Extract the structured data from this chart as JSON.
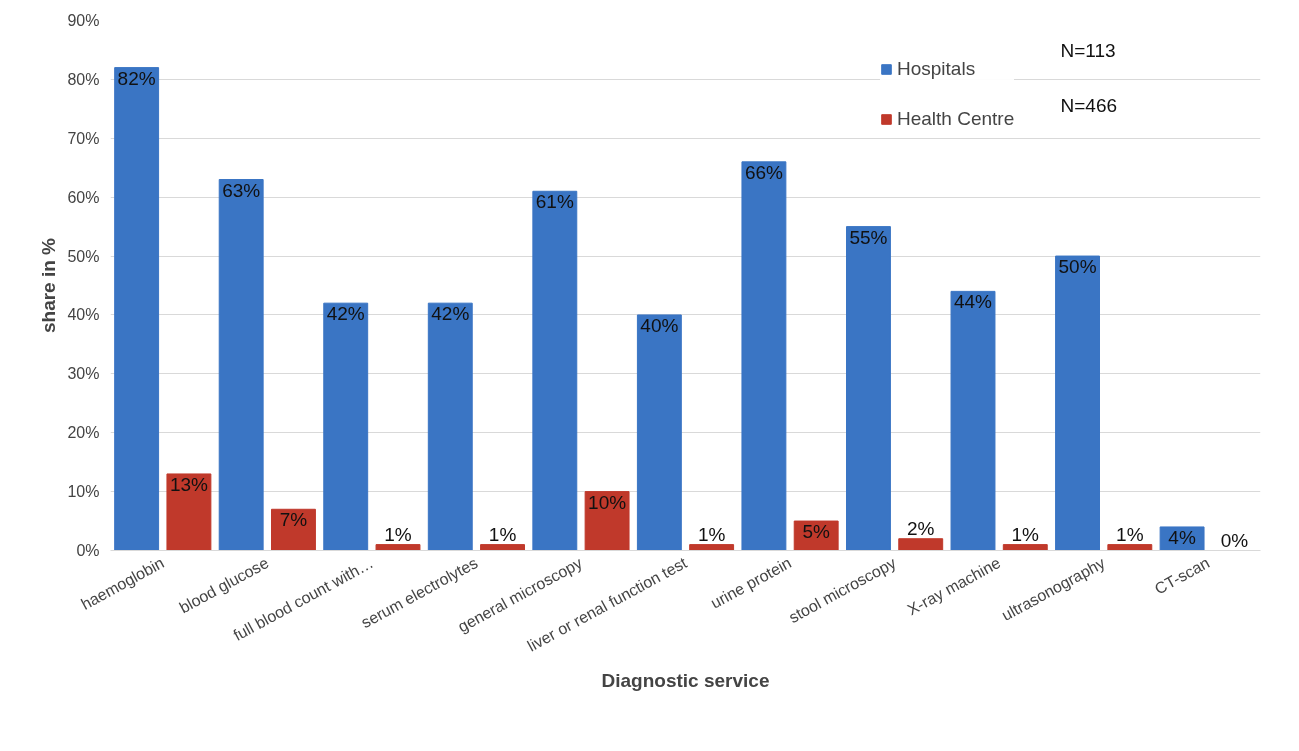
{
  "chart_data": {
    "type": "bar",
    "xlabel": "Diagnostic service",
    "ylabel": "share in %",
    "categories": [
      "haemoglobin",
      "blood glucose",
      "full blood count with…",
      "serum electrolytes",
      "general microscopy",
      "liver or renal function test",
      "urine protein",
      "stool microscopy",
      "X-ray machine",
      "ultrasonography",
      "CT-scan"
    ],
    "series": [
      {
        "name": "Hospitals",
        "color": "#3a75c4",
        "values": [
          82,
          63,
          42,
          42,
          61,
          40,
          66,
          55,
          44,
          50,
          4
        ],
        "value_labels": [
          "82%",
          "63%",
          "42%",
          "42%",
          "61%",
          "40%",
          "66%",
          "55%",
          "44%",
          "50%",
          "4%"
        ]
      },
      {
        "name": "Health Centre",
        "color": "#c0392b",
        "values": [
          13,
          7,
          1,
          1,
          10,
          1,
          5,
          2,
          1,
          1,
          0
        ],
        "value_labels": [
          "13%",
          "7%",
          "1%",
          "1%",
          "10%",
          "1%",
          "5%",
          "2%",
          "1%",
          "1%",
          "0%"
        ]
      }
    ],
    "ylim": [
      0,
      90
    ],
    "yticks": [
      {
        "value": 0,
        "label": "0%"
      },
      {
        "value": 10,
        "label": "10%"
      },
      {
        "value": 20,
        "label": "20%"
      },
      {
        "value": 30,
        "label": "30%"
      },
      {
        "value": 40,
        "label": "40%"
      },
      {
        "value": 50,
        "label": "50%"
      },
      {
        "value": 60,
        "label": "60%"
      },
      {
        "value": 70,
        "label": "70%"
      },
      {
        "value": 80,
        "label": "80%"
      },
      {
        "value": 90,
        "label": "90%"
      }
    ],
    "grid": "y",
    "legend": "top right",
    "annotations": [
      "N=113",
      "N=466"
    ]
  }
}
